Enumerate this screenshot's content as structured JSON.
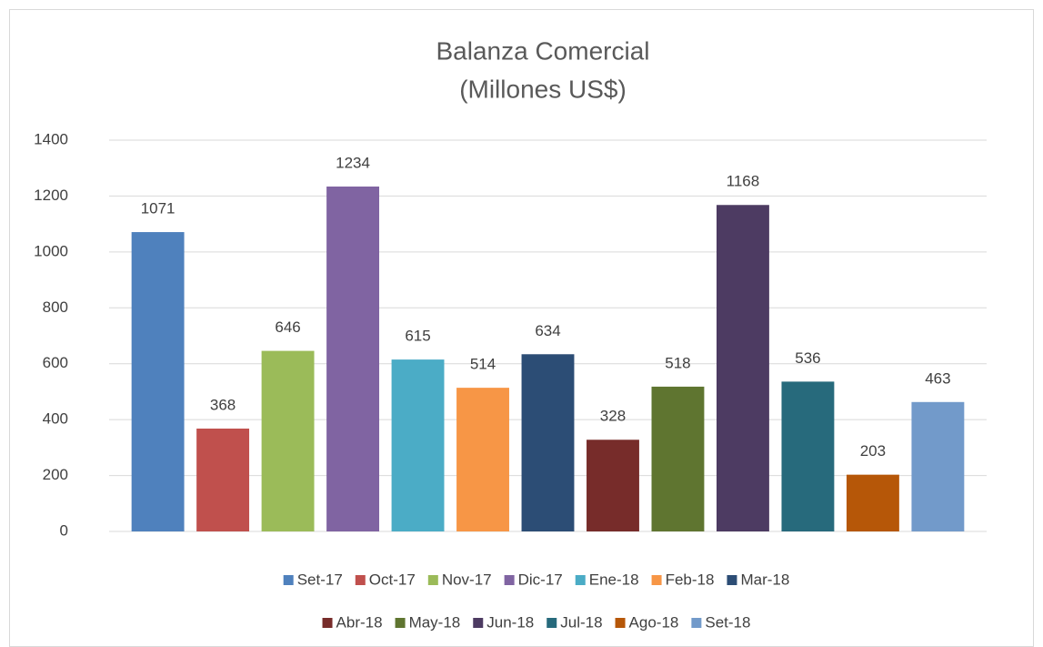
{
  "chart_data": {
    "type": "bar",
    "title": "Balanza Comercial",
    "subtitle": "(Millones US$)",
    "categories": [
      null
    ],
    "series": [
      {
        "name": "Set-17",
        "color": "#4f81bd",
        "values": [
          1071
        ]
      },
      {
        "name": "Oct-17",
        "color": "#c0504d",
        "values": [
          368
        ]
      },
      {
        "name": "Nov-17",
        "color": "#9bbb59",
        "values": [
          646
        ]
      },
      {
        "name": "Dic-17",
        "color": "#8064a2",
        "values": [
          1234
        ]
      },
      {
        "name": "Ene-18",
        "color": "#4bacc6",
        "values": [
          615
        ]
      },
      {
        "name": "Feb-18",
        "color": "#f79646",
        "values": [
          514
        ]
      },
      {
        "name": "Mar-18",
        "color": "#2c4d75",
        "values": [
          634
        ]
      },
      {
        "name": "Abr-18",
        "color": "#772c2a",
        "values": [
          328
        ]
      },
      {
        "name": "May-18",
        "color": "#5f7530",
        "values": [
          518
        ]
      },
      {
        "name": "Jun-18",
        "color": "#4d3b62",
        "values": [
          1168
        ]
      },
      {
        "name": "Jul-18",
        "color": "#276a7c",
        "values": [
          536
        ]
      },
      {
        "name": "Ago-18",
        "color": "#b65708",
        "values": [
          203
        ]
      },
      {
        "name": "Set-18",
        "color": "#729aca",
        "values": [
          463
        ]
      }
    ],
    "ylim": [
      0,
      1400
    ],
    "yticks": [
      0,
      200,
      400,
      600,
      800,
      1000,
      1200,
      1400
    ],
    "grid": true,
    "legend": "bottom"
  }
}
